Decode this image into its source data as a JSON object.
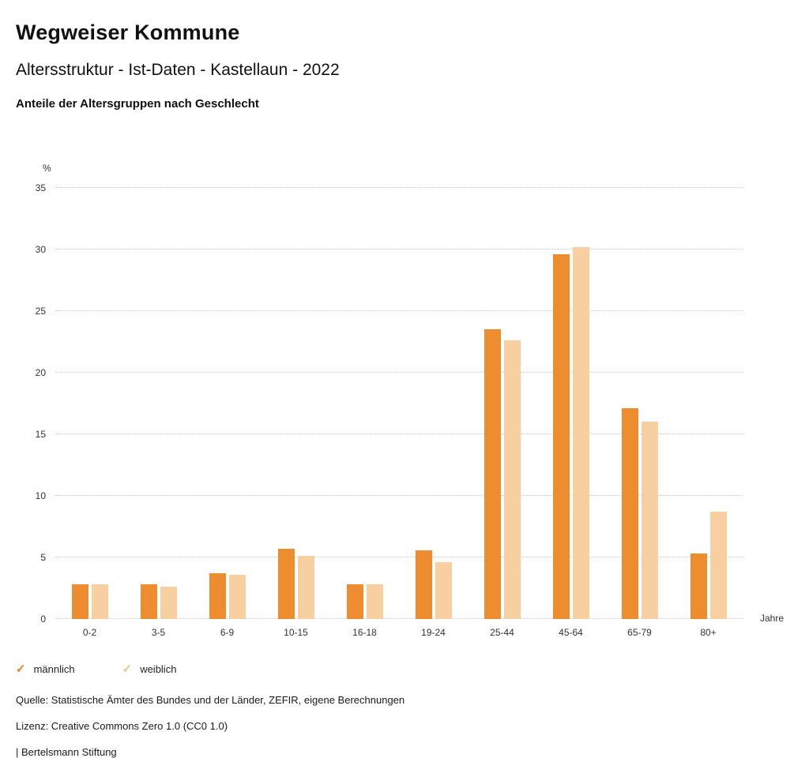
{
  "header": {
    "title": "Wegweiser Kommune",
    "subtitle": "Altersstruktur - Ist-Daten - Kastellaun - 2022",
    "chart_heading": "Anteile der Altersgruppen nach Geschlecht"
  },
  "chart_data": {
    "type": "bar",
    "title": "Anteile der Altersgruppen nach Geschlecht",
    "y_unit_label": "%",
    "x_unit_label": "Jahre",
    "categories": [
      "0-2",
      "3-5",
      "6-9",
      "10-15",
      "16-18",
      "19-24",
      "25-44",
      "45-64",
      "65-79",
      "80+"
    ],
    "series": [
      {
        "name": "männlich",
        "color": "#ED8D2F",
        "values": [
          2.8,
          2.8,
          3.7,
          5.7,
          2.8,
          5.6,
          23.5,
          29.6,
          17.1,
          5.3
        ]
      },
      {
        "name": "weiblich",
        "color": "#F8CFA0",
        "values": [
          2.8,
          2.6,
          3.6,
          5.1,
          2.8,
          4.6,
          22.6,
          30.2,
          16.0,
          8.7
        ]
      }
    ],
    "ylim": [
      0,
      35
    ],
    "ytick_step": 5,
    "grid": "dotted-horizontal",
    "legend_position": "bottom-left"
  },
  "legend": {
    "items": [
      {
        "label": "männlich",
        "color": "#E8821E"
      },
      {
        "label": "weiblich",
        "color": "#F6C387"
      }
    ]
  },
  "footer": {
    "source": "Quelle: Statistische Ämter des Bundes und der Länder, ZEFIR, eigene Berechnungen",
    "license": "Lizenz: Creative Commons Zero 1.0 (CC0 1.0)",
    "attribution": "| Bertelsmann Stiftung"
  }
}
